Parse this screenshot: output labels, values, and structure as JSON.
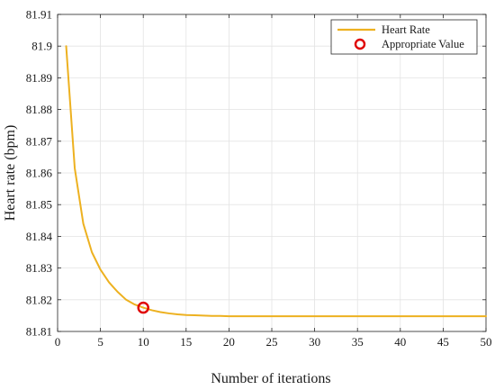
{
  "chart_data": {
    "type": "line",
    "title": "",
    "xlabel": "Number of iterations",
    "ylabel": "Heart rate (bpm)",
    "xlim": [
      0,
      50
    ],
    "ylim": [
      81.81,
      81.91
    ],
    "grid": true,
    "legend_position": "top-right",
    "x_ticks": [
      0,
      5,
      10,
      15,
      20,
      25,
      30,
      35,
      40,
      45,
      50
    ],
    "x_tick_labels": [
      "0",
      "5",
      "10",
      "15",
      "20",
      "25",
      "30",
      "35",
      "40",
      "45",
      "50"
    ],
    "y_ticks": [
      81.81,
      81.82,
      81.83,
      81.84,
      81.85,
      81.86,
      81.87,
      81.88,
      81.89,
      81.9,
      81.91
    ],
    "y_tick_labels": [
      "81.81",
      "81.82",
      "81.83",
      "81.84",
      "81.85",
      "81.86",
      "81.87",
      "81.88",
      "81.89",
      "81.9",
      "81.91"
    ],
    "series": [
      {
        "name": "Heart Rate",
        "color": "#EDB120",
        "x": [
          1,
          2,
          3,
          4,
          5,
          6,
          7,
          8,
          9,
          10,
          11,
          12,
          13,
          14,
          15,
          16,
          17,
          18,
          19,
          20,
          22,
          24,
          26,
          28,
          30,
          35,
          40,
          45,
          50
        ],
        "y": [
          81.9,
          81.8615,
          81.844,
          81.835,
          81.8295,
          81.8255,
          81.8225,
          81.82,
          81.8185,
          81.8175,
          81.8167,
          81.8161,
          81.8157,
          81.8154,
          81.8152,
          81.8151,
          81.815,
          81.8149,
          81.8149,
          81.8148,
          81.8148,
          81.8148,
          81.8148,
          81.8148,
          81.8148,
          81.8148,
          81.8148,
          81.8148,
          81.8148
        ]
      }
    ],
    "markers": [
      {
        "name": "Appropriate Value",
        "color": "#E00000",
        "x": 10,
        "y": 81.8175
      }
    ]
  }
}
